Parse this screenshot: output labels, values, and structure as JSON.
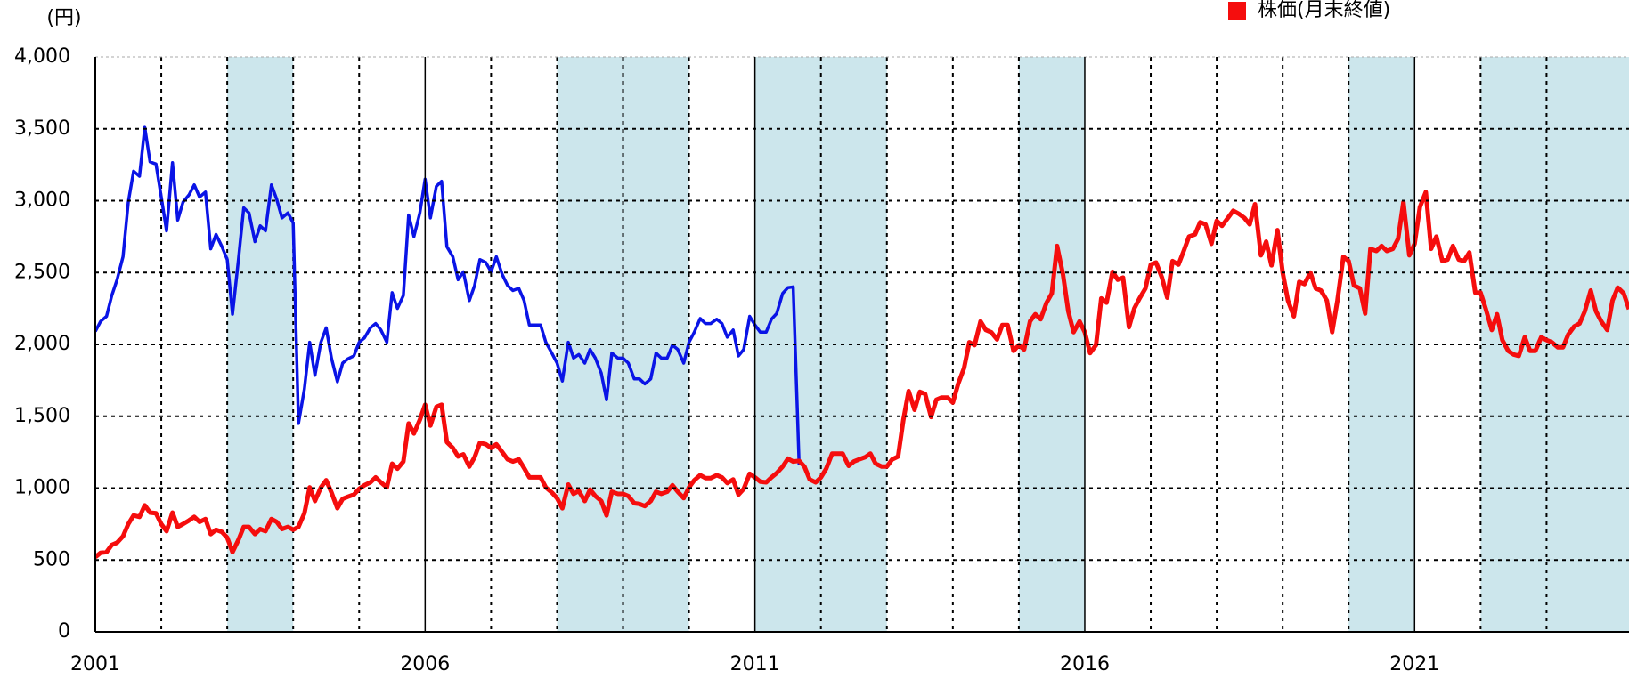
{
  "chart_data": {
    "type": "line",
    "ylabel": "(円)",
    "ylim": [
      0,
      4000
    ],
    "yticks": [
      0,
      500,
      {
        "value": 1000,
        "label": "1,000"
      },
      {
        "value": 1500,
        "label": "1,500"
      },
      {
        "value": 2000,
        "label": "2,000"
      },
      {
        "value": 2500,
        "label": "2,500"
      },
      {
        "value": 3000,
        "label": "3,000"
      },
      {
        "value": 3500,
        "label": "3,500"
      },
      {
        "value": 4000,
        "label": "4,000"
      }
    ],
    "xlim": [
      2001,
      2024.25
    ],
    "xticks": [
      2001,
      2006,
      2011,
      2016,
      2021
    ],
    "x_gridlines": [
      2002,
      2003,
      2004,
      2005,
      2007,
      2008,
      2009,
      2010,
      2012,
      2013,
      2014,
      2015,
      2017,
      2018,
      2019,
      2020,
      2022,
      2023
    ],
    "shaded_ranges": [
      [
        2003,
        2004
      ],
      [
        2008,
        2010
      ],
      [
        2011,
        2013
      ],
      [
        2015,
        2016
      ],
      [
        2020,
        2021
      ],
      [
        2022,
        2025
      ]
    ],
    "shade_color": "#cce6ec",
    "grid": true,
    "legend": "top-right",
    "x": [
      2001,
      2001.08,
      2001.17,
      2001.25,
      2001.33,
      2001.42,
      2001.5,
      2001.58,
      2001.67,
      2001.75,
      2001.83,
      2001.92,
      2002,
      2002.08,
      2002.17,
      2002.25,
      2002.33,
      2002.42,
      2002.5,
      2002.58,
      2002.67,
      2002.75,
      2002.83,
      2002.92,
      2003,
      2003.08,
      2003.17,
      2003.25,
      2003.33,
      2003.42,
      2003.5,
      2003.58,
      2003.67,
      2003.75,
      2003.83,
      2003.92,
      2004,
      2004.08,
      2004.17,
      2004.25,
      2004.33,
      2004.42,
      2004.5,
      2004.58,
      2004.67,
      2004.75,
      2004.83,
      2004.92,
      2005,
      2005.08,
      2005.17,
      2005.25,
      2005.33,
      2005.42,
      2005.5,
      2005.58,
      2005.67,
      2005.75,
      2005.83,
      2005.92,
      2006,
      2006.08,
      2006.17,
      2006.25,
      2006.33,
      2006.42,
      2006.5,
      2006.58,
      2006.67,
      2006.75,
      2006.83,
      2006.92,
      2007,
      2007.08,
      2007.17,
      2007.25,
      2007.33,
      2007.42,
      2007.5,
      2007.58,
      2007.67,
      2007.75,
      2007.83,
      2007.92,
      2008,
      2008.08,
      2008.17,
      2008.25,
      2008.33,
      2008.42,
      2008.5,
      2008.58,
      2008.67,
      2008.75,
      2008.83,
      2008.92,
      2009,
      2009.08,
      2009.17,
      2009.25,
      2009.33,
      2009.42,
      2009.5,
      2009.58,
      2009.67,
      2009.75,
      2009.83,
      2009.92,
      2010,
      2010.08,
      2010.17,
      2010.25,
      2010.33,
      2010.42,
      2010.5,
      2010.58,
      2010.67,
      2010.75,
      2010.83,
      2010.92,
      2011,
      2011.08,
      2011.17,
      2011.25,
      2011.33,
      2011.42,
      2011.5,
      2011.58,
      2011.67,
      2011.75,
      2011.83,
      2011.92,
      2012,
      2012.08,
      2012.17,
      2012.25,
      2012.33,
      2012.42,
      2012.5,
      2012.58,
      2012.67,
      2012.75,
      2012.83,
      2012.92,
      2013,
      2013.08,
      2013.17,
      2013.25,
      2013.33,
      2013.42,
      2013.5,
      2013.58,
      2013.67,
      2013.75,
      2013.83,
      2013.92,
      2014,
      2014.08,
      2014.17,
      2014.25,
      2014.33,
      2014.42,
      2014.5,
      2014.58,
      2014.67,
      2014.75,
      2014.83,
      2014.92,
      2015,
      2015.08,
      2015.17,
      2015.25,
      2015.33,
      2015.42,
      2015.5,
      2015.58,
      2015.67,
      2015.75,
      2015.83,
      2015.92,
      2016,
      2016.08,
      2016.17,
      2016.25,
      2016.33,
      2016.42,
      2016.5,
      2016.58,
      2016.67,
      2016.75,
      2016.83,
      2016.92,
      2017,
      2017.08,
      2017.17,
      2017.25,
      2017.33,
      2017.42,
      2017.5,
      2017.58,
      2017.67,
      2017.75,
      2017.83,
      2017.92,
      2018,
      2018.08,
      2018.17,
      2018.25,
      2018.33,
      2018.42,
      2018.5,
      2018.58,
      2018.67,
      2018.75,
      2018.83,
      2018.92,
      2019,
      2019.08,
      2019.17,
      2019.25,
      2019.33,
      2019.42,
      2019.5,
      2019.58,
      2019.67,
      2019.75,
      2019.83,
      2019.92,
      2020,
      2020.08,
      2020.17,
      2020.25,
      2020.33,
      2020.42,
      2020.5,
      2020.58,
      2020.67,
      2020.75,
      2020.83,
      2020.92,
      2021,
      2021.08,
      2021.17,
      2021.25,
      2021.33,
      2021.42,
      2021.5,
      2021.58,
      2021.67,
      2021.75,
      2021.83,
      2021.92,
      2022,
      2022.08,
      2022.17,
      2022.25,
      2022.33,
      2022.42,
      2022.5,
      2022.58,
      2022.67,
      2022.75,
      2022.83,
      2022.92,
      2023,
      2023.08,
      2023.17,
      2023.25,
      2023.33,
      2023.42,
      2023.5,
      2023.58,
      2023.67,
      2023.75,
      2023.83,
      2023.92,
      2024,
      2024.08,
      2024.17,
      2024.25
    ],
    "series": [
      {
        "color": "#0a14e6",
        "width": 3.5,
        "values": [
          2090,
          2160,
          2195,
          2340,
          2450,
          2610,
          2990,
          3205,
          3170,
          3510,
          3270,
          3255,
          3025,
          2790,
          3265,
          2865,
          2990,
          3040,
          3110,
          3025,
          3060,
          2665,
          2765,
          2680,
          2590,
          2210,
          2590,
          2950,
          2915,
          2715,
          2825,
          2790,
          3110,
          3010,
          2880,
          2915,
          2845,
          1450,
          1690,
          2015,
          1785,
          2015,
          2115,
          1905,
          1740,
          1870,
          1900,
          1920,
          2015,
          2045,
          2115,
          2145,
          2100,
          2015,
          2360,
          2250,
          2340,
          2900,
          2750,
          2915,
          3150,
          2880,
          3100,
          3135,
          2680,
          2610,
          2450,
          2505,
          2305,
          2410,
          2590,
          2570,
          2505,
          2610,
          2485,
          2410,
          2375,
          2390,
          2305,
          2135,
          2135,
          2135,
          2015,
          1940,
          1870,
          1745,
          2015,
          1905,
          1930,
          1870,
          1965,
          1905,
          1800,
          1615,
          1940,
          1905,
          1905,
          1870,
          1760,
          1760,
          1725,
          1760,
          1940,
          1905,
          1905,
          1995,
          1965,
          1870,
          2015,
          2085,
          2180,
          2145,
          2145,
          2175,
          2145,
          2050,
          2100,
          1920,
          1965,
          2195,
          2135,
          2085,
          2085,
          2175,
          2215,
          2355,
          2395,
          2400,
          1160,
          null,
          null,
          null,
          null,
          null,
          null,
          null,
          null,
          null,
          null,
          null,
          null,
          null,
          null,
          null,
          null,
          null,
          null,
          null,
          null,
          null,
          null,
          null,
          null,
          null,
          null,
          null,
          null,
          null,
          null,
          null,
          null,
          null,
          null,
          null,
          null,
          null,
          null,
          null,
          null,
          null,
          null,
          null,
          null,
          null,
          null,
          null,
          null,
          null,
          null,
          null,
          null,
          null,
          null,
          null,
          null,
          null,
          null,
          null,
          null,
          null,
          null,
          null,
          null,
          null,
          null,
          null,
          null,
          null,
          null,
          null,
          null,
          null,
          null,
          null,
          null,
          null,
          null,
          null,
          null,
          null,
          null,
          null,
          null,
          null,
          null,
          null,
          null,
          null,
          null,
          null,
          null,
          null,
          null,
          null,
          null,
          null,
          null,
          null,
          null,
          null,
          null,
          null,
          null,
          null,
          null,
          null,
          null,
          null,
          null,
          null,
          null,
          null,
          null,
          null,
          null,
          null,
          null,
          null,
          null,
          null,
          null,
          null,
          null,
          null,
          null,
          null,
          null,
          null,
          null,
          null,
          null,
          null,
          null,
          null,
          null,
          null,
          null,
          null,
          null,
          null,
          null,
          null,
          null,
          null,
          null,
          null,
          null,
          null,
          null,
          null
        ]
      },
      {
        "name": "株価(月末終値)",
        "color": "#f50d0d",
        "width": 5,
        "values": [
          520,
          550,
          555,
          605,
          620,
          665,
          750,
          810,
          800,
          880,
          830,
          825,
          750,
          700,
          830,
          730,
          750,
          775,
          800,
          765,
          785,
          680,
          710,
          695,
          655,
          555,
          640,
          730,
          730,
          680,
          715,
          700,
          785,
          765,
          715,
          730,
          710,
          730,
          825,
          1005,
          910,
          1005,
          1055,
          970,
          860,
          925,
          940,
          955,
          995,
          1020,
          1040,
          1075,
          1040,
          1005,
          1170,
          1135,
          1185,
          1450,
          1380,
          1475,
          1580,
          1435,
          1565,
          1580,
          1320,
          1280,
          1220,
          1235,
          1150,
          1215,
          1315,
          1305,
          1280,
          1305,
          1250,
          1200,
          1185,
          1200,
          1140,
          1075,
          1075,
          1075,
          1005,
          970,
          930,
          860,
          1025,
          960,
          980,
          910,
          990,
          945,
          910,
          810,
          975,
          960,
          960,
          945,
          895,
          890,
          875,
          910,
          975,
          960,
          975,
          1020,
          975,
          930,
          1005,
          1055,
          1090,
          1070,
          1070,
          1090,
          1075,
          1035,
          1060,
          955,
          995,
          1100,
          1075,
          1045,
          1040,
          1075,
          1105,
          1150,
          1205,
          1185,
          1190,
          1150,
          1060,
          1040,
          1075,
          1135,
          1240,
          1240,
          1240,
          1155,
          1185,
          1200,
          1215,
          1240,
          1170,
          1150,
          1150,
          1200,
          1220,
          1475,
          1675,
          1545,
          1670,
          1655,
          1495,
          1615,
          1630,
          1630,
          1595,
          1725,
          1835,
          2015,
          1995,
          2160,
          2100,
          2085,
          2035,
          2135,
          2135,
          1955,
          1995,
          1965,
          2160,
          2210,
          2175,
          2290,
          2355,
          2685,
          2485,
          2230,
          2085,
          2160,
          2085,
          1940,
          1995,
          2320,
          2290,
          2505,
          2450,
          2465,
          2120,
          2250,
          2320,
          2390,
          2555,
          2570,
          2465,
          2325,
          2580,
          2555,
          2650,
          2750,
          2765,
          2850,
          2835,
          2700,
          2860,
          2825,
          2880,
          2930,
          2910,
          2880,
          2835,
          2975,
          2620,
          2715,
          2550,
          2795,
          2500,
          2305,
          2195,
          2435,
          2420,
          2500,
          2390,
          2375,
          2305,
          2085,
          2305,
          2610,
          2580,
          2410,
          2390,
          2215,
          2665,
          2650,
          2685,
          2650,
          2665,
          2735,
          2990,
          2620,
          2700,
          2955,
          3060,
          2665,
          2750,
          2580,
          2590,
          2685,
          2590,
          2580,
          2640,
          2360,
          2360,
          2245,
          2100,
          2210,
          2030,
          1955,
          1930,
          1920,
          2050,
          1955,
          1955,
          2050,
          2030,
          2015,
          1980,
          1980,
          2070,
          2125,
          2145,
          2230,
          2375,
          2230,
          2160,
          2100,
          2305,
          2395,
          2355,
          2245
        ]
      }
    ]
  }
}
